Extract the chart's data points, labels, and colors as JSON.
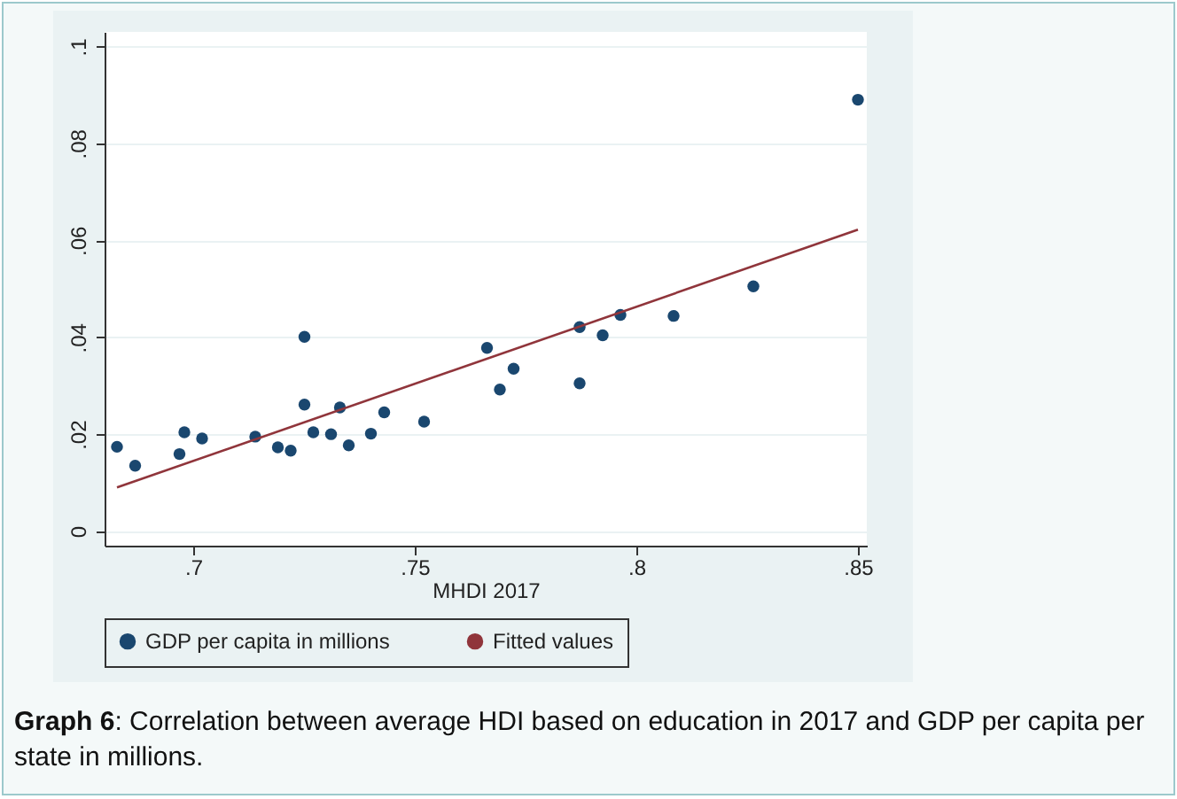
{
  "chart_data": {
    "type": "scatter",
    "xlabel": "MHDI 2017",
    "annotations": [
      "Graph 6: Correlation between average HDI based on education in 2017 and GDP per capita per state in millions."
    ],
    "xlim": [
      0.68,
      0.852
    ],
    "xticks": [
      {
        "value": 0.7,
        "label": ".7"
      },
      {
        "value": 0.75,
        "label": ".75"
      },
      {
        "value": 0.8,
        "label": ".8"
      },
      {
        "value": 0.85,
        "label": ".85"
      }
    ],
    "ylim": [
      -0.003,
      0.103
    ],
    "yticks": [
      0,
      {
        "value": 0.02,
        "label": ".02"
      },
      {
        "value": 0.04,
        "label": ".04"
      },
      {
        "value": 0.06,
        "label": ".06"
      },
      {
        "value": 0.08,
        "label": ".08"
      },
      {
        "value": 0.1,
        "label": ".1"
      }
    ],
    "grid": "y",
    "legend": "bottom",
    "series": [
      {
        "name": "GDP per capita in millions",
        "marker": "circle",
        "color": "#1a476f",
        "x": [
          0.6828,
          0.6869,
          0.6969,
          0.698,
          0.702,
          0.714,
          0.7191,
          0.722,
          0.7251,
          0.7251,
          0.7271,
          0.7311,
          0.7331,
          0.7351,
          0.7401,
          0.7431,
          0.7521,
          0.7663,
          0.7692,
          0.7723,
          0.7872,
          0.7872,
          0.7924,
          0.7964,
          0.8084,
          0.8264,
          0.85
        ],
        "values": [
          0.0174,
          0.0135,
          0.0159,
          0.0204,
          0.0191,
          0.0195,
          0.0173,
          0.0166,
          0.0401,
          0.0261,
          0.0204,
          0.02,
          0.0255,
          0.0177,
          0.0201,
          0.0245,
          0.0226,
          0.0378,
          0.0292,
          0.0335,
          0.0305,
          0.0421,
          0.0404,
          0.0446,
          0.0444,
          0.0505,
          0.089
        ]
      },
      {
        "name": "Fitted values",
        "type": "line",
        "color": "#90353b",
        "x": [
          0.6828,
          0.85
        ],
        "values": [
          0.009,
          0.0622
        ]
      }
    ]
  }
}
